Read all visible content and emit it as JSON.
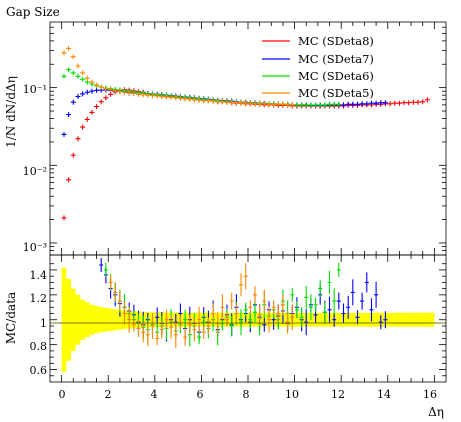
{
  "chart_data": {
    "type": "scatter",
    "title": "Gap Size",
    "main_panel": {
      "ylabel": "1/N dN/dΔη",
      "yscale": "log",
      "xlim": [
        -0.5,
        16.5
      ],
      "ylim": [
        0.0007,
        0.7
      ],
      "ytick_labels": [
        "10⁻¹",
        "10⁻²",
        "10⁻³"
      ],
      "legend_position": "top-right"
    },
    "ratio_panel": {
      "ylabel": "MC/data",
      "xlabel": "Δη",
      "ylim": [
        0.5,
        1.52
      ],
      "ytick_labels": [
        "1.4",
        "1.2",
        "1",
        "0.8",
        "0.6"
      ],
      "xtick_labels": [
        "0",
        "2",
        "4",
        "6",
        "8",
        "10",
        "12",
        "14",
        "16"
      ],
      "band_color": "#ffff00",
      "reference_line": 1.0
    },
    "series": [
      {
        "name": "MC (SDeta8)",
        "color": "#ff0000",
        "x": [
          0.1,
          0.3,
          0.5,
          0.7,
          0.9,
          1.1,
          1.3,
          1.5,
          1.7,
          1.9,
          2.1,
          2.3,
          2.5,
          2.7,
          2.9,
          3.1,
          3.3,
          3.5,
          3.7,
          3.9,
          4.1,
          4.3,
          4.5,
          4.7,
          4.9,
          5.1,
          5.3,
          5.5,
          5.7,
          5.9,
          6.1,
          6.3,
          6.5,
          6.7,
          6.9,
          7.1,
          7.3,
          7.5,
          7.7,
          7.9,
          8.1,
          8.3,
          8.5,
          8.7,
          8.9,
          9.1,
          9.3,
          9.5,
          9.7,
          9.9,
          10.1,
          10.3,
          10.5,
          10.7,
          10.9,
          11.1,
          11.3,
          11.5,
          11.7,
          11.9,
          12.1,
          12.3,
          12.5,
          12.7,
          12.9,
          13.1,
          13.3,
          13.5,
          13.7,
          13.9,
          14.1,
          14.3,
          14.5,
          14.7,
          14.9,
          15.1,
          15.3,
          15.5,
          15.7
        ],
        "y": [
          0.0021,
          0.0065,
          0.0135,
          0.022,
          0.031,
          0.039,
          0.048,
          0.057,
          0.066,
          0.074,
          0.082,
          0.088,
          0.092,
          0.094,
          0.093,
          0.091,
          0.089,
          0.087,
          0.084,
          0.082,
          0.08,
          0.079,
          0.078,
          0.077,
          0.076,
          0.074,
          0.073,
          0.072,
          0.071,
          0.07,
          0.069,
          0.068,
          0.067,
          0.066,
          0.066,
          0.065,
          0.064,
          0.063,
          0.063,
          0.062,
          0.062,
          0.061,
          0.061,
          0.06,
          0.06,
          0.06,
          0.059,
          0.059,
          0.059,
          0.058,
          0.058,
          0.058,
          0.058,
          0.058,
          0.058,
          0.058,
          0.058,
          0.058,
          0.058,
          0.058,
          0.058,
          0.059,
          0.059,
          0.059,
          0.06,
          0.06,
          0.06,
          0.061,
          0.061,
          0.062,
          0.062,
          0.063,
          0.063,
          0.064,
          0.064,
          0.065,
          0.065,
          0.066,
          0.07
        ]
      },
      {
        "name": "MC (SDeta7)",
        "color": "#0000ff",
        "x": [
          0.1,
          0.3,
          0.5,
          0.7,
          0.9,
          1.1,
          1.3,
          1.5,
          1.7,
          1.9,
          2.1,
          2.3,
          2.5,
          2.7,
          2.9,
          3.1,
          3.3,
          3.5,
          3.7,
          3.9,
          4.1,
          4.3,
          4.5,
          4.7,
          4.9,
          5.1,
          5.3,
          5.5,
          5.7,
          5.9,
          6.1,
          6.3,
          6.5,
          6.7,
          6.9,
          7.1,
          7.3,
          7.5,
          7.7,
          7.9,
          8.1,
          8.3,
          8.5,
          8.7,
          8.9,
          9.1,
          9.3,
          9.5,
          9.7,
          9.9,
          10.1,
          10.3,
          10.5,
          10.7,
          10.9,
          11.1,
          11.3,
          11.5,
          11.7,
          11.9,
          12.1,
          12.3,
          12.5,
          12.7,
          12.9,
          13.1,
          13.3,
          13.5,
          13.7,
          13.9
        ],
        "y": [
          0.025,
          0.045,
          0.065,
          0.077,
          0.083,
          0.087,
          0.09,
          0.092,
          0.093,
          0.093,
          0.092,
          0.091,
          0.09,
          0.089,
          0.088,
          0.087,
          0.086,
          0.085,
          0.084,
          0.083,
          0.082,
          0.081,
          0.08,
          0.079,
          0.078,
          0.077,
          0.076,
          0.075,
          0.074,
          0.073,
          0.072,
          0.071,
          0.07,
          0.069,
          0.068,
          0.068,
          0.067,
          0.066,
          0.065,
          0.065,
          0.064,
          0.064,
          0.063,
          0.063,
          0.062,
          0.062,
          0.061,
          0.061,
          0.061,
          0.06,
          0.06,
          0.06,
          0.06,
          0.059,
          0.059,
          0.059,
          0.059,
          0.06,
          0.06,
          0.06,
          0.06,
          0.061,
          0.061,
          0.061,
          0.062,
          0.062,
          0.063,
          0.063,
          0.064,
          0.064
        ]
      },
      {
        "name": "MC (SDeta6)",
        "color": "#00dd00",
        "x": [
          0.1,
          0.3,
          0.5,
          0.7,
          0.9,
          1.1,
          1.3,
          1.5,
          1.7,
          1.9,
          2.1,
          2.3,
          2.5,
          2.7,
          2.9,
          3.1,
          3.3,
          3.5,
          3.7,
          3.9,
          4.1,
          4.3,
          4.5,
          4.7,
          4.9,
          5.1,
          5.3,
          5.5,
          5.7,
          5.9,
          6.1,
          6.3,
          6.5,
          6.7,
          6.9,
          7.1,
          7.3,
          7.5,
          7.7,
          7.9,
          8.1,
          8.3,
          8.5,
          8.7,
          8.9,
          9.1,
          9.3,
          9.5,
          9.7,
          9.9,
          10.1,
          10.3,
          10.5,
          10.7,
          10.9,
          11.1,
          11.3,
          11.5,
          11.7,
          11.9
        ],
        "y": [
          0.14,
          0.17,
          0.155,
          0.14,
          0.128,
          0.118,
          0.111,
          0.106,
          0.102,
          0.099,
          0.097,
          0.095,
          0.093,
          0.091,
          0.089,
          0.088,
          0.086,
          0.085,
          0.083,
          0.082,
          0.081,
          0.08,
          0.079,
          0.078,
          0.077,
          0.076,
          0.075,
          0.074,
          0.073,
          0.072,
          0.071,
          0.07,
          0.069,
          0.068,
          0.067,
          0.067,
          0.066,
          0.065,
          0.065,
          0.064,
          0.064,
          0.063,
          0.063,
          0.062,
          0.062,
          0.062,
          0.061,
          0.061,
          0.061,
          0.06,
          0.06,
          0.06,
          0.06,
          0.06,
          0.06,
          0.06,
          0.06,
          0.061,
          0.061,
          0.061
        ]
      },
      {
        "name": "MC (SDeta5)",
        "color": "#ff8800",
        "x": [
          0.1,
          0.3,
          0.5,
          0.7,
          0.9,
          1.1,
          1.3,
          1.5,
          1.7,
          1.9,
          2.1,
          2.3,
          2.5,
          2.7,
          2.9,
          3.1,
          3.3,
          3.5,
          3.7,
          3.9,
          4.1,
          4.3,
          4.5,
          4.7,
          4.9,
          5.1,
          5.3,
          5.5,
          5.7,
          5.9,
          6.1,
          6.3,
          6.5,
          6.7,
          6.9,
          7.1,
          7.3,
          7.5,
          7.7,
          7.9,
          8.1,
          8.3,
          8.5,
          8.7,
          8.9,
          9.1,
          9.3,
          9.5,
          9.7,
          9.9
        ],
        "y": [
          0.28,
          0.32,
          0.25,
          0.19,
          0.155,
          0.132,
          0.118,
          0.108,
          0.101,
          0.097,
          0.094,
          0.091,
          0.089,
          0.087,
          0.085,
          0.084,
          0.082,
          0.081,
          0.08,
          0.079,
          0.078,
          0.077,
          0.076,
          0.075,
          0.074,
          0.073,
          0.072,
          0.071,
          0.07,
          0.069,
          0.068,
          0.068,
          0.067,
          0.066,
          0.066,
          0.065,
          0.065,
          0.064,
          0.064,
          0.063,
          0.063,
          0.062,
          0.062,
          0.062,
          0.061,
          0.061,
          0.061,
          0.061,
          0.06,
          0.06
        ]
      }
    ],
    "ratio_series": [
      {
        "name": "MC (SDeta7)",
        "color": "#0000ff",
        "x": [
          1.7,
          1.9,
          2.1,
          2.3,
          2.5,
          2.7,
          2.9,
          3.1,
          3.3,
          3.5,
          3.7,
          3.9,
          4.1,
          4.3,
          4.5,
          4.7,
          4.9,
          5.1,
          5.3,
          5.5,
          5.7,
          5.9,
          6.1,
          6.3,
          6.5,
          6.7,
          6.9,
          7.1,
          7.3,
          7.5,
          7.7,
          7.9,
          8.1,
          8.3,
          8.5,
          8.7,
          8.9,
          9.1,
          9.3,
          9.5,
          9.7,
          9.9,
          10.1,
          10.3,
          10.5,
          10.7,
          10.9,
          11.1,
          11.3,
          11.5,
          11.7,
          11.9,
          12.1,
          12.3,
          12.5,
          12.7,
          12.9,
          13.1,
          13.3,
          13.5,
          13.7,
          13.9
        ],
        "y": [
          1.44,
          1.36,
          1.25,
          1.2,
          1.13,
          1.1,
          1.07,
          1.04,
          0.98,
          0.96,
          1.0,
          0.95,
          1.02,
          0.97,
          0.93,
          1.0,
          0.98,
          1.05,
          0.93,
          1.0,
          0.97,
          0.9,
          1.02,
          0.98,
          1.05,
          0.92,
          1.0,
          1.04,
          0.96,
          1.1,
          1.0,
          1.05,
          0.98,
          1.12,
          1.02,
          0.96,
          1.08,
          1.0,
          1.03,
          1.07,
          0.97,
          1.05,
          1.1,
          1.0,
          0.98,
          1.12,
          1.04,
          1.2,
          1.06,
          1.08,
          1.0,
          1.15,
          1.05,
          1.1,
          1.22,
          1.02,
          1.15,
          1.3,
          1.08,
          1.2,
          0.98,
          1.0
        ]
      },
      {
        "name": "MC (SDeta6)",
        "color": "#00dd00",
        "x": [
          1.9,
          2.1,
          2.3,
          2.5,
          2.7,
          2.9,
          3.1,
          3.3,
          3.5,
          3.7,
          3.9,
          4.1,
          4.3,
          4.5,
          4.7,
          4.9,
          5.1,
          5.3,
          5.5,
          5.7,
          5.9,
          6.1,
          6.3,
          6.5,
          6.7,
          6.9,
          7.1,
          7.3,
          7.5,
          7.7,
          7.9,
          8.1,
          8.3,
          8.5,
          8.7,
          8.9,
          9.1,
          9.3,
          9.5,
          9.7,
          9.9,
          10.1,
          10.3,
          10.5,
          10.7,
          10.9,
          11.1,
          11.3,
          11.5,
          11.7,
          11.9
        ],
        "y": [
          1.4,
          1.3,
          1.22,
          1.15,
          1.1,
          1.05,
          1.0,
          0.97,
          0.94,
          0.92,
          0.96,
          0.9,
          0.95,
          0.93,
          0.98,
          0.91,
          0.96,
          1.0,
          0.88,
          0.95,
          0.86,
          0.98,
          0.93,
          1.0,
          0.9,
          0.97,
          1.02,
          0.95,
          1.05,
          0.98,
          1.08,
          1.0,
          1.06,
          0.97,
          1.12,
          1.03,
          1.08,
          1.0,
          1.15,
          1.05,
          1.2,
          1.08,
          1.02,
          1.18,
          1.1,
          1.12,
          1.25,
          1.06,
          1.3,
          1.15,
          1.4
        ]
      },
      {
        "name": "MC (SDeta5)",
        "color": "#ff8800",
        "x": [
          2.1,
          2.3,
          2.5,
          2.7,
          2.9,
          3.1,
          3.3,
          3.5,
          3.7,
          3.9,
          4.1,
          4.3,
          4.5,
          4.7,
          4.9,
          5.1,
          5.3,
          5.5,
          5.7,
          5.9,
          6.1,
          6.3,
          6.5,
          6.7,
          6.9,
          7.1,
          7.3,
          7.5,
          7.7,
          7.9,
          8.1,
          8.3,
          8.5,
          8.7,
          8.9,
          9.1,
          9.3,
          9.5,
          9.7,
          9.9
        ],
        "y": [
          1.3,
          1.22,
          1.15,
          1.05,
          1.0,
          0.96,
          0.93,
          0.9,
          0.88,
          0.95,
          0.85,
          0.92,
          1.0,
          0.94,
          0.88,
          0.98,
          0.86,
          0.96,
          0.92,
          1.0,
          0.9,
          0.95,
          1.05,
          0.97,
          1.1,
          1.0,
          1.15,
          1.05,
          1.28,
          1.35,
          1.1,
          1.2,
          1.04,
          1.15,
          1.0,
          1.1,
          1.05,
          1.12,
          0.98,
          1.02
        ]
      }
    ],
    "ratio_band_halfwidth": [
      [
        0.1,
        0.42
      ],
      [
        0.3,
        0.33
      ],
      [
        0.5,
        0.25
      ],
      [
        0.7,
        0.2
      ],
      [
        0.9,
        0.16
      ],
      [
        1.1,
        0.14
      ],
      [
        1.3,
        0.12
      ],
      [
        1.5,
        0.11
      ],
      [
        1.7,
        0.1
      ],
      [
        1.9,
        0.095
      ],
      [
        2.1,
        0.09
      ],
      [
        2.3,
        0.085
      ],
      [
        2.5,
        0.08
      ],
      [
        2.7,
        0.075
      ],
      [
        2.9,
        0.07
      ],
      [
        3.1,
        0.068
      ],
      [
        3.3,
        0.065
      ],
      [
        3.5,
        0.063
      ],
      [
        3.7,
        0.061
      ],
      [
        3.9,
        0.06
      ],
      [
        4.5,
        0.058
      ],
      [
        5.5,
        0.056
      ],
      [
        7.0,
        0.055
      ],
      [
        9.0,
        0.055
      ],
      [
        11.0,
        0.055
      ],
      [
        13.0,
        0.056
      ],
      [
        15.0,
        0.057
      ],
      [
        15.9,
        0.058
      ]
    ]
  }
}
